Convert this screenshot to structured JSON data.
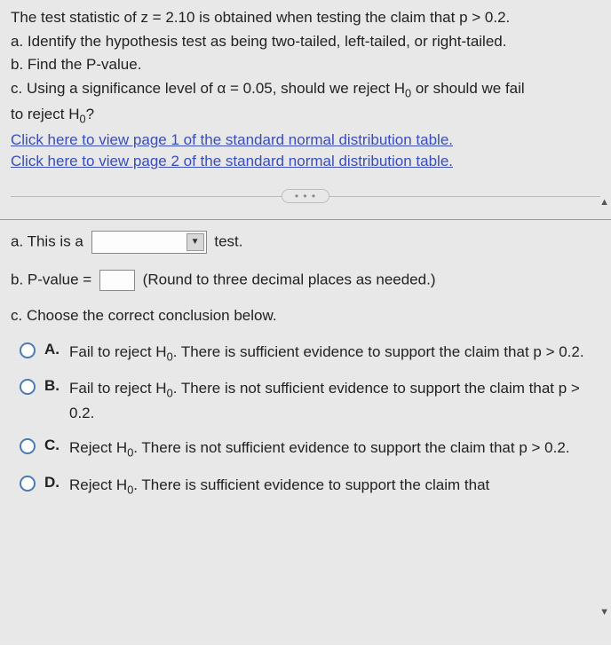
{
  "question": {
    "intro": "The test statistic of z = 2.10 is obtained when testing the claim that p > 0.2.",
    "part_a": "a. Identify the hypothesis test as being two-tailed, left-tailed, or right-tailed.",
    "part_b": "b. Find the P-value.",
    "part_c_1": "c. Using a significance level of α = 0.05, should we reject H",
    "part_c_2": " or should we fail",
    "part_c_3": "to reject H",
    "part_c_4": "?",
    "link1": "Click here to view page 1 of the standard normal distribution table.",
    "link2": "Click here to view page 2 of the standard normal distribution table."
  },
  "dots": "• • •",
  "answers": {
    "a_prefix": "a. This is a",
    "a_suffix": "test.",
    "b_prefix": "b. P-value =",
    "b_suffix": "(Round to three decimal places as needed.)",
    "c_prompt": "c. Choose the correct conclusion below."
  },
  "options": [
    {
      "letter": "A.",
      "text_1": "Fail to reject H",
      "text_2": ". There is sufficient evidence to support the claim that p > 0.2."
    },
    {
      "letter": "B.",
      "text_1": "Fail to reject H",
      "text_2": ". There is not sufficient evidence to support the claim that p > 0.2."
    },
    {
      "letter": "C.",
      "text_1": "Reject H",
      "text_2": ". There is not sufficient evidence to support the claim that p > 0.2."
    },
    {
      "letter": "D.",
      "text_1": "Reject H",
      "text_2": ". There is sufficient evidence to support the claim that"
    }
  ],
  "subscript": "0",
  "colors": {
    "background": "#e8e8e8",
    "text": "#222222",
    "link": "#3b4db8",
    "radio_border": "#4a7bb5",
    "input_border": "#888888"
  }
}
